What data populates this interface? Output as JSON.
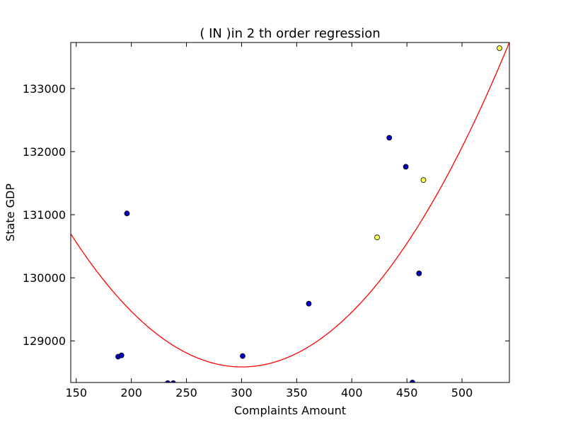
{
  "chart_data": {
    "type": "scatter",
    "title": "(  IN  )in 2 th order regression",
    "xlabel": "Complaints Amount",
    "ylabel": "State GDP",
    "xlim": [
      145,
      543
    ],
    "ylim": [
      128340,
      133730
    ],
    "xticks": [
      150,
      200,
      250,
      300,
      350,
      400,
      450,
      500
    ],
    "yticks": [
      129000,
      130000,
      131000,
      132000,
      133000
    ],
    "colors": {
      "background": "#ffffff",
      "regression": "#ff0000",
      "primary_points": "#0000bf",
      "highlight_points": "#ffff4d",
      "point_edge": "#000000"
    },
    "series": [
      {
        "color_key": "primary_points",
        "x": [
          188,
          191,
          196,
          233,
          238,
          301,
          361,
          434,
          449,
          455,
          461
        ],
        "y": [
          128750,
          128770,
          131020,
          128330,
          128330,
          128760,
          129590,
          132220,
          131760,
          128340,
          130070
        ]
      },
      {
        "color_key": "highlight_points",
        "x": [
          423,
          465,
          534
        ],
        "y": [
          130640,
          131550,
          133640
        ]
      }
    ],
    "regression": {
      "order": 2,
      "coefficients": [
        0.0874,
        -52.5,
        136471
      ]
    }
  }
}
